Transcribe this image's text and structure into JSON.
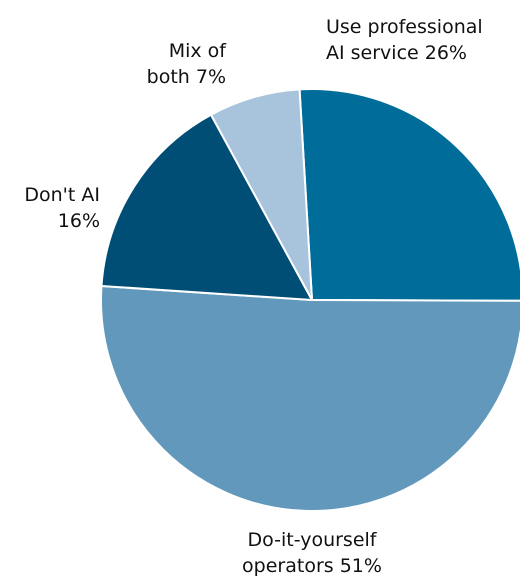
{
  "chart_data": {
    "type": "pie",
    "slices": [
      {
        "label_lines": [
          "Use professional",
          "AI service 26%"
        ],
        "value": 26,
        "color": "#006c99"
      },
      {
        "label_lines": [
          "Do-it-yourself",
          "operators 51%"
        ],
        "value": 51,
        "color": "#6298bb"
      },
      {
        "label_lines": [
          "Don't AI",
          "16%"
        ],
        "value": 16,
        "color": "#004e76"
      },
      {
        "label_lines": [
          "Mix of",
          "both 7%"
        ],
        "value": 7,
        "color": "#a8c3dc"
      }
    ]
  }
}
